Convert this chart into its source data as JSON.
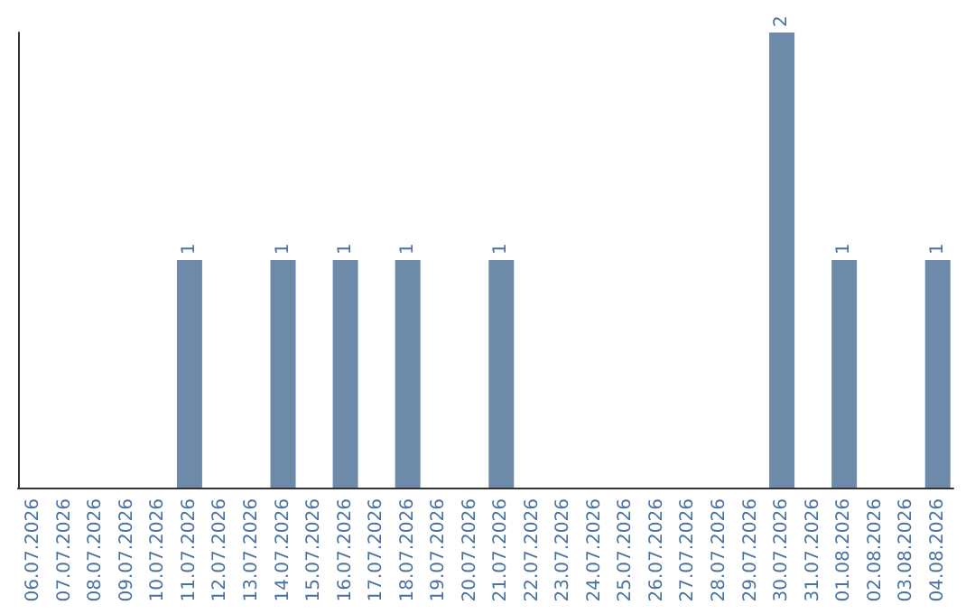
{
  "chart_data": {
    "type": "bar",
    "categories": [
      "06.07.2026",
      "07.07.2026",
      "08.07.2026",
      "09.07.2026",
      "10.07.2026",
      "11.07.2026",
      "12.07.2026",
      "13.07.2026",
      "14.07.2026",
      "15.07.2026",
      "16.07.2026",
      "17.07.2026",
      "18.07.2026",
      "19.07.2026",
      "20.07.2026",
      "21.07.2026",
      "22.07.2026",
      "23.07.2026",
      "24.07.2026",
      "25.07.2026",
      "26.07.2026",
      "27.07.2026",
      "28.07.2026",
      "29.07.2026",
      "30.07.2026",
      "31.07.2026",
      "01.08.2026",
      "02.08.2026",
      "03.08.2026",
      "04.08.2026"
    ],
    "values": [
      0,
      0,
      0,
      0,
      0,
      1,
      0,
      0,
      1,
      0,
      1,
      0,
      1,
      0,
      0,
      1,
      0,
      0,
      0,
      0,
      0,
      0,
      0,
      0,
      2,
      0,
      1,
      0,
      0,
      1
    ],
    "value_labels": [
      null,
      null,
      null,
      null,
      null,
      "1",
      null,
      null,
      "1",
      null,
      "1",
      null,
      "1",
      null,
      null,
      "1",
      null,
      null,
      null,
      null,
      null,
      null,
      null,
      null,
      "2",
      null,
      "1",
      null,
      null,
      "1"
    ],
    "color": "#6d8ba8"
  }
}
